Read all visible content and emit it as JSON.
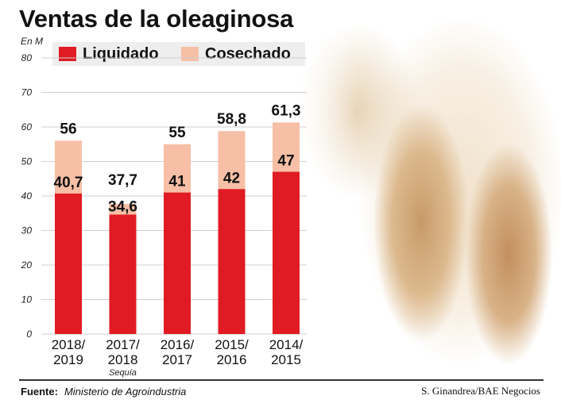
{
  "title": "Ventas de la oleaginosa",
  "unit_label": "En M",
  "colors": {
    "liquidado": "#e01b23",
    "cosechado": "#f7bfa5"
  },
  "legend": [
    {
      "label": "Liquidado",
      "color": "#e01b23"
    },
    {
      "label": "Cosechado",
      "color": "#f7bfa5"
    }
  ],
  "chart_data": {
    "type": "bar",
    "categories": [
      "2018/2019",
      "2017/2018",
      "2016/2017",
      "2015/2016",
      "2014/2015"
    ],
    "category_lines": [
      [
        "2018/",
        "2019"
      ],
      [
        "2017/",
        "2018"
      ],
      [
        "2016/",
        "2017"
      ],
      [
        "2015/",
        "2016"
      ],
      [
        "2014/",
        "2015"
      ]
    ],
    "category_notes": [
      "",
      "Sequía",
      "",
      "",
      ""
    ],
    "series": [
      {
        "name": "Liquidado",
        "values": [
          40.7,
          34.6,
          41,
          42,
          47
        ],
        "labels": [
          "40,7",
          "34,6",
          "41",
          "42",
          "47"
        ]
      },
      {
        "name": "Cosechado",
        "values": [
          56,
          37.7,
          55,
          58.8,
          61.3
        ],
        "labels": [
          "56",
          "37,7",
          "55",
          "58,8",
          "61,3"
        ]
      }
    ],
    "ylim": [
      0,
      80
    ],
    "yticks": [
      0,
      10,
      20,
      30,
      40,
      50,
      60,
      70,
      80
    ],
    "grid": true
  },
  "footer": {
    "source_label": "Fuente:",
    "source_text": "Ministerio de Agroindustria",
    "credit": "S. Ginandrea/BAE Negocios"
  }
}
